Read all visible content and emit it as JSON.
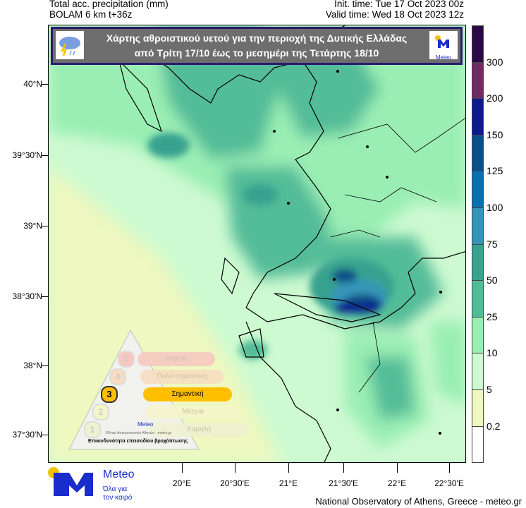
{
  "header": {
    "left_line1": "Total acc. precipitation (mm)",
    "left_line2": "BOLAM 6 km t+36z",
    "right_line1": "Init. time: Tue 17 Oct 2023 00z",
    "right_line2": "Valid time: Wed 18 Oct 2023 12z"
  },
  "banner": {
    "line1": "Χάρτης αθροιστικού υετού για την περιοχή της Δυτικής Ελλάδας",
    "line2": "από Τρίτη 17/10 έως το μεσημέρι της Τετάρτης 18/10",
    "left_icon": "storm-cloud-icon",
    "right_logo_text": "Meteo"
  },
  "axes": {
    "lat_ticks": [
      "40°N",
      "39°30'N",
      "39°N",
      "38°30'N",
      "38°N",
      "37°30'N"
    ],
    "lon_ticks": [
      "20°E",
      "20°30'E",
      "21°E",
      "21°30'E",
      "22°E",
      "22°30'E"
    ]
  },
  "colorbar": {
    "labels": [
      "300",
      "200",
      "150",
      "125",
      "100",
      "75",
      "50",
      "25",
      "10",
      "5",
      "0.2"
    ],
    "colors": [
      "#2a0a45",
      "#6e2d62",
      "#0c1a8e",
      "#0a4f86",
      "#0870ae",
      "#3595b8",
      "#38a28f",
      "#52bc98",
      "#9aeeb4",
      "#cdfad0",
      "#eef8c0",
      "#ffffff"
    ]
  },
  "warning_pyramid": {
    "levels": [
      {
        "num": "5",
        "label": "Ακραία"
      },
      {
        "num": "4",
        "label": "Πολύ σημαντική"
      },
      {
        "num": "3",
        "label": "Σημαντική"
      },
      {
        "num": "2",
        "label": "Μέτρια"
      },
      {
        "num": "1",
        "label": "Χαμηλή"
      }
    ],
    "active_level": 3,
    "logo_text": "Meteo",
    "logo_sub": "Όλα για τον καιρό",
    "org_text": "Εθνικό Αστεροσκοπείο Αθηνών - meteo.gr",
    "caption": "Επικινδυνότητα επεισοδίου βροχόπτωσης"
  },
  "logo": {
    "name": "Meteo",
    "tagline1": "Όλα για",
    "tagline2": "τον καιρό"
  },
  "footer": "National Observatory of Athens, Greece - meteo.gr"
}
